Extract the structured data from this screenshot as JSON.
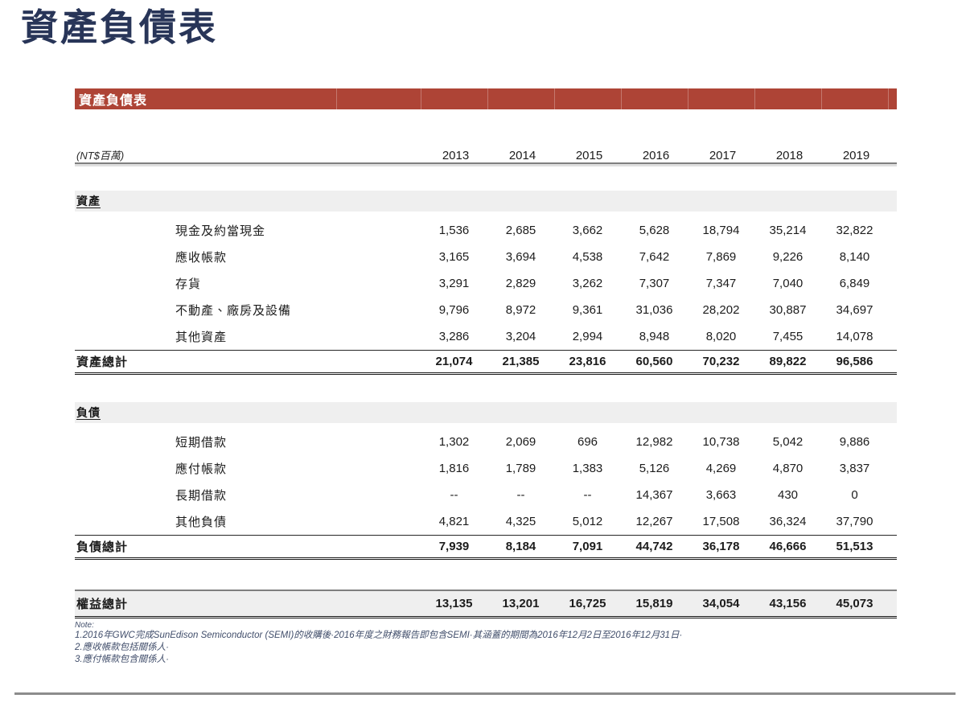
{
  "page": {
    "title": "資產負債表"
  },
  "table": {
    "header_bar": "資產負債表",
    "unit_label": "(NT$百萬)",
    "years": [
      "2013",
      "2014",
      "2015",
      "2016",
      "2017",
      "2018",
      "2019"
    ],
    "sections": [
      {
        "name": "資產",
        "rows": [
          {
            "label": "現金及約當現金",
            "values": [
              "1,536",
              "2,685",
              "3,662",
              "5,628",
              "18,794",
              "35,214",
              "32,822"
            ]
          },
          {
            "label": "應收帳款",
            "values": [
              "3,165",
              "3,694",
              "4,538",
              "7,642",
              "7,869",
              "9,226",
              "8,140"
            ]
          },
          {
            "label": "存貨",
            "values": [
              "3,291",
              "2,829",
              "3,262",
              "7,307",
              "7,347",
              "7,040",
              "6,849"
            ]
          },
          {
            "label": "不動產、廠房及設備",
            "values": [
              "9,796",
              "8,972",
              "9,361",
              "31,036",
              "28,202",
              "30,887",
              "34,697"
            ]
          },
          {
            "label": "其他資產",
            "values": [
              "3,286",
              "3,204",
              "2,994",
              "8,948",
              "8,020",
              "7,455",
              "14,078"
            ]
          }
        ],
        "total": {
          "label": "資產總計",
          "values": [
            "21,074",
            "21,385",
            "23,816",
            "60,560",
            "70,232",
            "89,822",
            "96,586"
          ]
        }
      },
      {
        "name": "負債",
        "rows": [
          {
            "label": "短期借款",
            "values": [
              "1,302",
              "2,069",
              "696",
              "12,982",
              "10,738",
              "5,042",
              "9,886"
            ]
          },
          {
            "label": "應付帳款",
            "values": [
              "1,816",
              "1,789",
              "1,383",
              "5,126",
              "4,269",
              "4,870",
              "3,837"
            ]
          },
          {
            "label": "長期借款",
            "values": [
              "--",
              "--",
              "--",
              "14,367",
              "3,663",
              "430",
              "0"
            ]
          },
          {
            "label": "其他負債",
            "values": [
              "4,821",
              "4,325",
              "5,012",
              "12,267",
              "17,508",
              "36,324",
              "37,790"
            ]
          }
        ],
        "total": {
          "label": "負債總計",
          "values": [
            "7,939",
            "8,184",
            "7,091",
            "44,742",
            "36,178",
            "46,666",
            "51,513"
          ]
        }
      }
    ],
    "equity_total": {
      "label": "權益總計",
      "values": [
        "13,135",
        "13,201",
        "16,725",
        "15,819",
        "34,054",
        "43,156",
        "45,073"
      ]
    }
  },
  "notes": {
    "heading": "Note:",
    "items": [
      "1.2016年GWC完成SunEdison Semiconductor (SEMI)的收購後·2016年度之財務報告即包含SEMI·其涵蓋的期間為2016年12月2日至2016年12月31日·",
      "2.應收帳款包括關係人·",
      "3.應付帳款包含關係人·"
    ]
  },
  "colors": {
    "accent_red": "#AE4436",
    "title_navy": "#283558",
    "band_gray": "#EFEFEF",
    "line_gray": "#7F7F7F",
    "line_dark": "#1A1A1A",
    "note_color": "#414E6B",
    "rule_gray": "#8C8C8C"
  }
}
